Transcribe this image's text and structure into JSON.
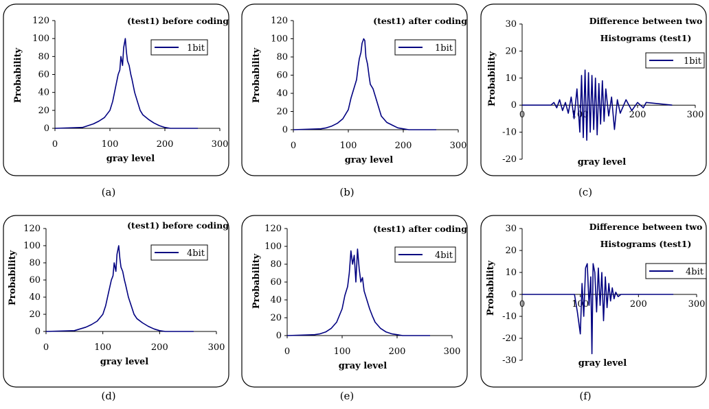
{
  "colors": {
    "series": "#000080"
  },
  "chart_data": [
    {
      "id": "a",
      "type": "line",
      "caption": "(a)",
      "title_lines": [
        "(test1) before coding"
      ],
      "xlabel": "gray level",
      "ylabel": "Probability",
      "xlim": [
        0,
        300
      ],
      "ylim": [
        0,
        120
      ],
      "xticks": [
        "0",
        "100",
        "200",
        "300"
      ],
      "yticks": [
        "0",
        "20",
        "40",
        "60",
        "80",
        "100",
        "120"
      ],
      "legend": "1bit",
      "series": [
        {
          "name": "1bit",
          "x": [
            0,
            50,
            60,
            70,
            80,
            90,
            100,
            105,
            110,
            115,
            118,
            120,
            123,
            125,
            128,
            130,
            132,
            135,
            138,
            140,
            145,
            150,
            155,
            160,
            170,
            180,
            190,
            200,
            210,
            230,
            260
          ],
          "y": [
            0,
            1,
            3,
            5,
            8,
            12,
            20,
            30,
            45,
            60,
            65,
            80,
            70,
            90,
            100,
            85,
            75,
            70,
            60,
            55,
            40,
            30,
            20,
            15,
            10,
            6,
            3,
            1,
            0,
            0,
            0
          ]
        }
      ]
    },
    {
      "id": "b",
      "type": "line",
      "caption": "(b)",
      "title_lines": [
        "(test1) after coding"
      ],
      "xlabel": "gray level",
      "ylabel": "Probability",
      "xlim": [
        0,
        300
      ],
      "ylim": [
        0,
        120
      ],
      "xticks": [
        "0",
        "100",
        "200",
        "300"
      ],
      "yticks": [
        "0",
        "20",
        "40",
        "60",
        "80",
        "100",
        "120"
      ],
      "legend": "1bit",
      "series": [
        {
          "name": "1bit",
          "x": [
            0,
            50,
            60,
            70,
            80,
            90,
            100,
            105,
            110,
            115,
            118,
            120,
            123,
            125,
            128,
            130,
            132,
            135,
            138,
            140,
            145,
            150,
            155,
            160,
            170,
            180,
            190,
            200,
            210,
            230,
            260
          ],
          "y": [
            0,
            1,
            2,
            4,
            7,
            12,
            22,
            35,
            45,
            55,
            70,
            78,
            85,
            95,
            100,
            98,
            80,
            72,
            58,
            50,
            45,
            35,
            25,
            15,
            8,
            5,
            2,
            1,
            0,
            0,
            0
          ]
        }
      ]
    },
    {
      "id": "c",
      "type": "line",
      "caption": "(c)",
      "title_lines": [
        "Difference between two",
        "Histograms (test1)"
      ],
      "xlabel": "gray level",
      "ylabel": "Probability",
      "xlim": [
        0,
        300
      ],
      "ylim": [
        -20,
        30
      ],
      "xticks": [
        "0",
        "100",
        "200",
        "300"
      ],
      "yticks": [
        "-20",
        "-10",
        "0",
        "10",
        "20",
        "30"
      ],
      "legend": "1bit",
      "series": [
        {
          "name": "1bit",
          "x": [
            0,
            50,
            55,
            60,
            65,
            70,
            75,
            80,
            85,
            90,
            95,
            100,
            103,
            106,
            109,
            112,
            115,
            118,
            121,
            124,
            127,
            130,
            133,
            136,
            139,
            142,
            145,
            150,
            155,
            160,
            165,
            170,
            180,
            190,
            200,
            210,
            215,
            260
          ],
          "y": [
            0,
            0,
            1,
            -1,
            2,
            -2,
            1,
            -3,
            3,
            -5,
            6,
            -10,
            11,
            -12,
            13,
            -13,
            12,
            -10,
            11,
            -9,
            10,
            -11,
            8,
            -7,
            9,
            -6,
            6,
            -4,
            3,
            -9,
            2,
            -3,
            2,
            -2,
            1,
            -1,
            1,
            0
          ]
        }
      ]
    },
    {
      "id": "d",
      "type": "line",
      "caption": "(d)",
      "title_lines": [
        "(test1) before coding"
      ],
      "xlabel": "gray level",
      "ylabel": "Probability",
      "xlim": [
        0,
        300
      ],
      "ylim": [
        0,
        120
      ],
      "xticks": [
        "0",
        "100",
        "200",
        "300"
      ],
      "yticks": [
        "0",
        "20",
        "40",
        "60",
        "80",
        "100",
        "120"
      ],
      "legend": "4bit",
      "series": [
        {
          "name": "4bit",
          "x": [
            0,
            50,
            60,
            70,
            80,
            90,
            100,
            105,
            110,
            115,
            118,
            120,
            123,
            125,
            128,
            130,
            132,
            135,
            138,
            140,
            145,
            150,
            155,
            160,
            170,
            180,
            190,
            200,
            210,
            230,
            260
          ],
          "y": [
            0,
            1,
            3,
            5,
            8,
            12,
            20,
            30,
            45,
            60,
            65,
            80,
            70,
            90,
            100,
            85,
            75,
            70,
            60,
            55,
            40,
            30,
            20,
            15,
            10,
            6,
            3,
            1,
            0,
            0,
            0
          ]
        }
      ]
    },
    {
      "id": "e",
      "type": "line",
      "caption": "(e)",
      "title_lines": [
        "(test1) after coding"
      ],
      "xlabel": "gray level",
      "ylabel": "Probability",
      "xlim": [
        0,
        300
      ],
      "ylim": [
        0,
        120
      ],
      "xticks": [
        "0",
        "100",
        "200",
        "300"
      ],
      "yticks": [
        "0",
        "20",
        "40",
        "60",
        "80",
        "100",
        "120"
      ],
      "legend": "4bit",
      "series": [
        {
          "name": "4bit",
          "x": [
            0,
            50,
            60,
            70,
            80,
            90,
            100,
            105,
            110,
            113,
            116,
            119,
            122,
            125,
            128,
            131,
            134,
            137,
            140,
            145,
            150,
            155,
            160,
            170,
            180,
            190,
            200,
            210,
            230,
            260
          ],
          "y": [
            0,
            1,
            2,
            4,
            8,
            15,
            30,
            45,
            55,
            70,
            95,
            80,
            90,
            60,
            97,
            75,
            60,
            65,
            50,
            40,
            30,
            22,
            15,
            8,
            4,
            2,
            1,
            0,
            0,
            0
          ]
        }
      ]
    },
    {
      "id": "f",
      "type": "line",
      "caption": "(f)",
      "title_lines": [
        "Difference between two",
        "Histograms (test1)"
      ],
      "xlabel": "gray level",
      "ylabel": "Probability",
      "xlim": [
        0,
        300
      ],
      "ylim": [
        -30,
        30
      ],
      "xticks": [
        "0",
        "100",
        "200",
        "300"
      ],
      "yticks": [
        "-30",
        "-20",
        "-10",
        "0",
        "10",
        "20",
        "30"
      ],
      "legend": "4bit",
      "series": [
        {
          "name": "4bit",
          "x": [
            0,
            90,
            95,
            100,
            103,
            106,
            109,
            112,
            115,
            118,
            120,
            122,
            125,
            128,
            131,
            134,
            137,
            140,
            143,
            146,
            149,
            152,
            155,
            158,
            161,
            165,
            170,
            200,
            260
          ],
          "y": [
            0,
            0,
            -8,
            -18,
            5,
            -10,
            12,
            14,
            -5,
            8,
            -27,
            14,
            10,
            -8,
            12,
            -5,
            10,
            -12,
            8,
            -6,
            5,
            -3,
            3,
            -2,
            1,
            -1,
            0,
            0,
            0
          ]
        }
      ]
    }
  ]
}
